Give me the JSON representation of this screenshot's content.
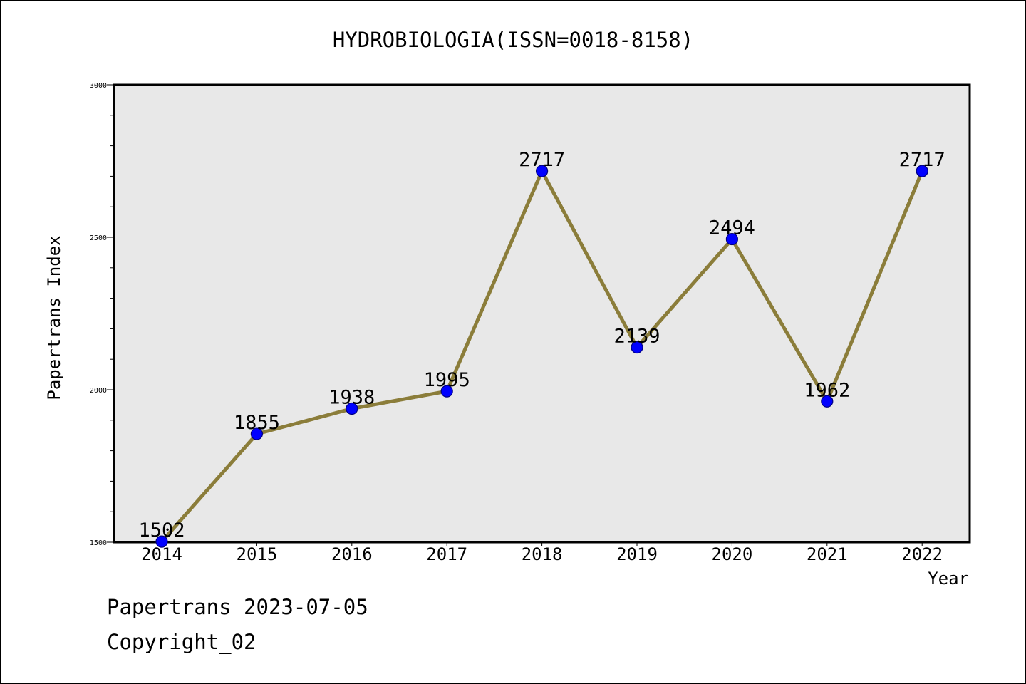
{
  "chart_data": {
    "type": "line",
    "title": "HYDROBIOLOGIA(ISSN=0018-8158)",
    "xlabel": "Year",
    "ylabel": "Papertrans Index",
    "x": [
      "2014",
      "2015",
      "2016",
      "2017",
      "2018",
      "2019",
      "2020",
      "2021",
      "2022"
    ],
    "series": [
      {
        "values": [
          1502,
          1855,
          1938,
          1995,
          2717,
          2139,
          2494,
          1962,
          2717
        ]
      }
    ],
    "ylim": [
      1500,
      3000
    ],
    "yticks": [
      1500,
      2000,
      2500,
      3000
    ],
    "grid": false,
    "legend": "none",
    "colors": {
      "line": "#8b7d3a",
      "marker": "#0000ff",
      "marker_edge": "#000080",
      "plot_background": "#e8e8e8"
    }
  },
  "footer": {
    "date_line": "Papertrans 2023-07-05",
    "copyright": "Copyright_02"
  }
}
